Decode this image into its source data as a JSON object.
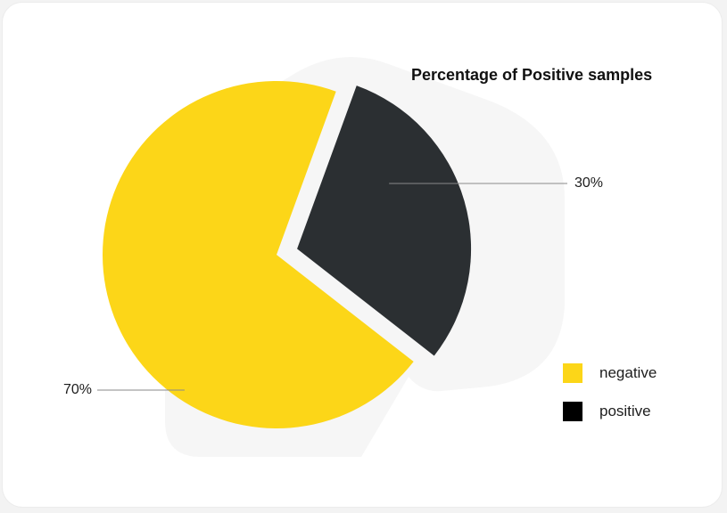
{
  "chart_data": {
    "type": "pie",
    "title": "Percentage of Positive samples",
    "slices": [
      {
        "label": "positive",
        "value": 30,
        "display": "30%",
        "color": "#2b2f32",
        "exploded": true
      },
      {
        "label": "negative",
        "value": 70,
        "display": "70%",
        "color": "#fcd618",
        "exploded": false
      }
    ],
    "legend": {
      "placement": "bottom-right",
      "entries": [
        {
          "label": "negative",
          "color": "#fcd618"
        },
        {
          "label": "positive",
          "color": "#000000"
        }
      ]
    }
  }
}
